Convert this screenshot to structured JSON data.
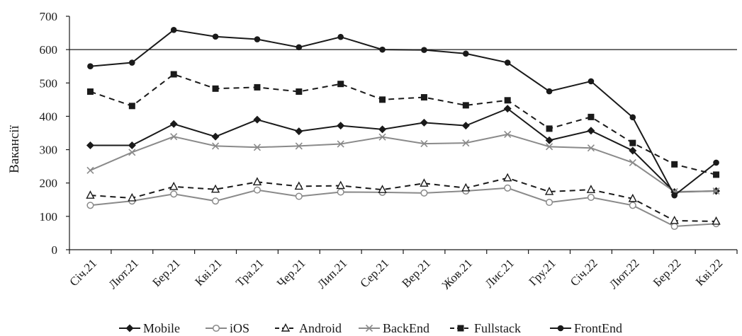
{
  "chart_data": {
    "type": "line",
    "ylabel": "Вакансії",
    "xlabel": "",
    "title": "",
    "ylim": [
      0,
      700
    ],
    "yticks": [
      0,
      100,
      200,
      300,
      400,
      500,
      600,
      700
    ],
    "reference_line": 600,
    "grid": false,
    "legend_position": "bottom",
    "categories": [
      "Січ.21",
      "Лют.21",
      "Бер.21",
      "Кві.21",
      "Тра.21",
      "Чер.21",
      "Лип.21",
      "Сер.21",
      "Вер.21",
      "Жов.21",
      "Лис.21",
      "Гру.21",
      "Січ.22",
      "Лют.22",
      "Бер.22",
      "Кві.22"
    ],
    "series": [
      {
        "name": "Mobile",
        "color": "#1a1a1a",
        "dash": "solid",
        "marker": "diamond",
        "values": [
          313,
          313,
          377,
          339,
          390,
          355,
          372,
          361,
          381,
          372,
          423,
          328,
          357,
          297,
          173,
          176
        ]
      },
      {
        "name": "iOS",
        "color": "#8a8a8a",
        "dash": "solid",
        "marker": "circle-open",
        "values": [
          133,
          146,
          167,
          146,
          179,
          160,
          173,
          172,
          170,
          176,
          185,
          142,
          157,
          133,
          70,
          78
        ]
      },
      {
        "name": "Android",
        "color": "#1a1a1a",
        "dash": "dashed",
        "marker": "triangle-open",
        "values": [
          163,
          155,
          189,
          181,
          203,
          190,
          192,
          180,
          199,
          185,
          215,
          174,
          180,
          153,
          87,
          85
        ]
      },
      {
        "name": "BackEnd",
        "color": "#8a8a8a",
        "dash": "solid",
        "marker": "x",
        "values": [
          238,
          292,
          339,
          311,
          307,
          311,
          317,
          338,
          318,
          320,
          346,
          309,
          305,
          261,
          174,
          176
        ]
      },
      {
        "name": "Fullstack",
        "color": "#1a1a1a",
        "dash": "dashed",
        "marker": "square",
        "values": [
          474,
          431,
          526,
          483,
          487,
          474,
          497,
          450,
          457,
          433,
          448,
          363,
          398,
          320,
          256,
          225
        ]
      },
      {
        "name": "FrontEnd",
        "color": "#1a1a1a",
        "dash": "solid",
        "marker": "circle",
        "values": [
          550,
          561,
          659,
          639,
          631,
          607,
          638,
          600,
          599,
          588,
          561,
          475,
          505,
          397,
          163,
          261
        ]
      }
    ]
  }
}
